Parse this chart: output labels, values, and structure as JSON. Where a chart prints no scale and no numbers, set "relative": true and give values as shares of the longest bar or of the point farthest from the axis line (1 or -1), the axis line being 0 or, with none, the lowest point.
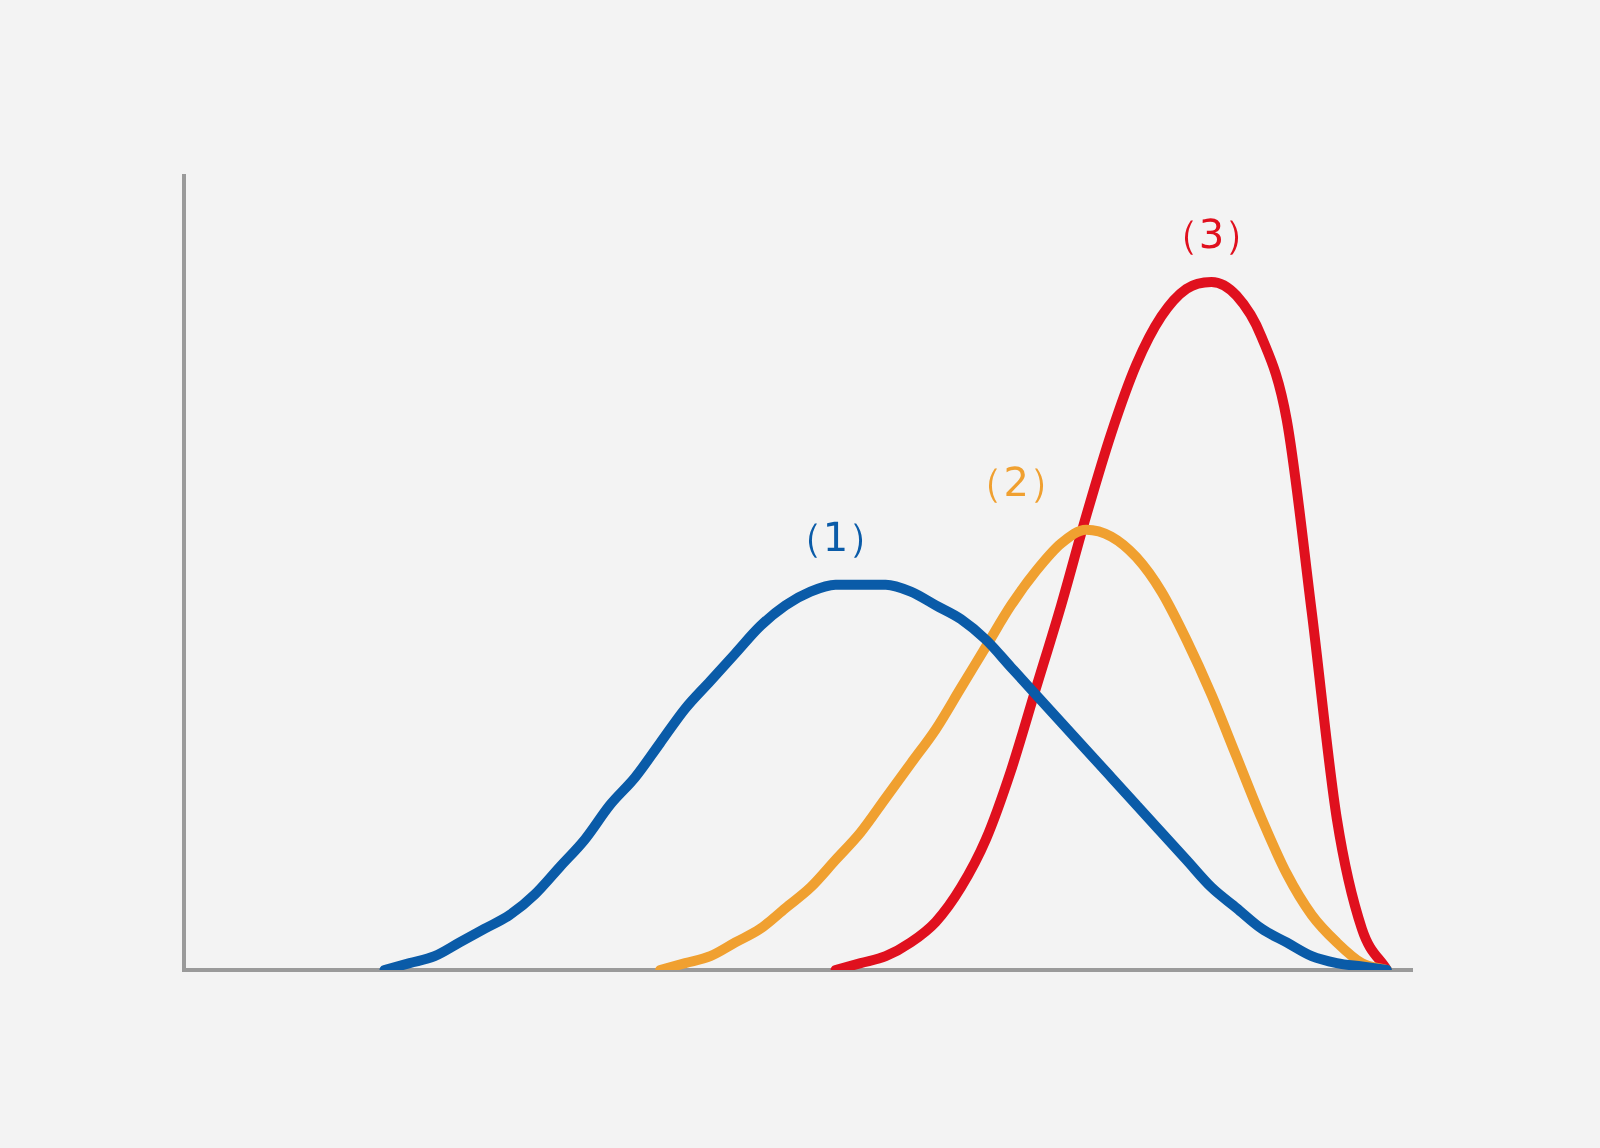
{
  "chart_data": {
    "type": "line",
    "relative": true,
    "grid": false,
    "legend": false,
    "tick_labels": false,
    "marker": "none",
    "line_style": "solid",
    "categories": [
      null,
      null,
      null,
      null,
      null,
      null,
      null,
      null,
      null,
      null,
      null,
      null,
      null,
      null,
      null,
      null,
      null,
      null,
      null,
      null,
      null,
      null,
      null,
      null,
      null,
      null,
      null,
      null,
      null,
      null,
      null,
      null,
      null,
      null,
      null,
      null,
      null,
      null,
      null,
      null,
      null,
      null,
      null,
      null,
      null,
      null,
      null,
      null,
      null,
      null
    ],
    "series": [
      {
        "name": "（1）",
        "color": "#0a5ba8",
        "values": [
          null,
          null,
          null,
          null,
          null,
          null,
          null,
          null,
          0,
          0.01,
          0.02,
          0.04,
          0.06,
          0.08,
          0.11,
          0.15,
          0.19,
          0.24,
          0.28,
          0.33,
          0.38,
          0.42,
          0.46,
          0.5,
          0.53,
          0.55,
          0.56,
          0.56,
          0.56,
          0.55,
          0.53,
          0.51,
          0.48,
          0.44,
          0.4,
          0.36,
          0.32,
          0.28,
          0.24,
          0.2,
          0.16,
          0.12,
          0.09,
          0.06,
          0.04,
          0.02,
          0.01,
          0.005,
          0,
          null
        ]
      },
      {
        "name": "（2）",
        "color": "#f0a030",
        "values": [
          null,
          null,
          null,
          null,
          null,
          null,
          null,
          null,
          null,
          null,
          null,
          null,
          null,
          null,
          null,
          null,
          null,
          null,
          null,
          0,
          0.01,
          0.02,
          0.04,
          0.06,
          0.09,
          0.12,
          0.16,
          0.2,
          0.25,
          0.3,
          0.35,
          0.41,
          0.47,
          0.53,
          0.58,
          0.62,
          0.64,
          0.63,
          0.6,
          0.55,
          0.48,
          0.4,
          0.31,
          0.22,
          0.14,
          0.08,
          0.04,
          0.01,
          0,
          null
        ]
      },
      {
        "name": "（3）",
        "color": "#e0101e",
        "values": [
          null,
          null,
          null,
          null,
          null,
          null,
          null,
          null,
          null,
          null,
          null,
          null,
          null,
          null,
          null,
          null,
          null,
          null,
          null,
          null,
          null,
          null,
          null,
          null,
          null,
          null,
          0,
          0.01,
          0.02,
          0.04,
          0.07,
          0.12,
          0.19,
          0.29,
          0.41,
          0.53,
          0.66,
          0.78,
          0.88,
          0.95,
          0.99,
          1,
          0.98,
          0.92,
          0.8,
          0.52,
          0.22,
          0.06,
          0,
          null
        ]
      }
    ]
  }
}
